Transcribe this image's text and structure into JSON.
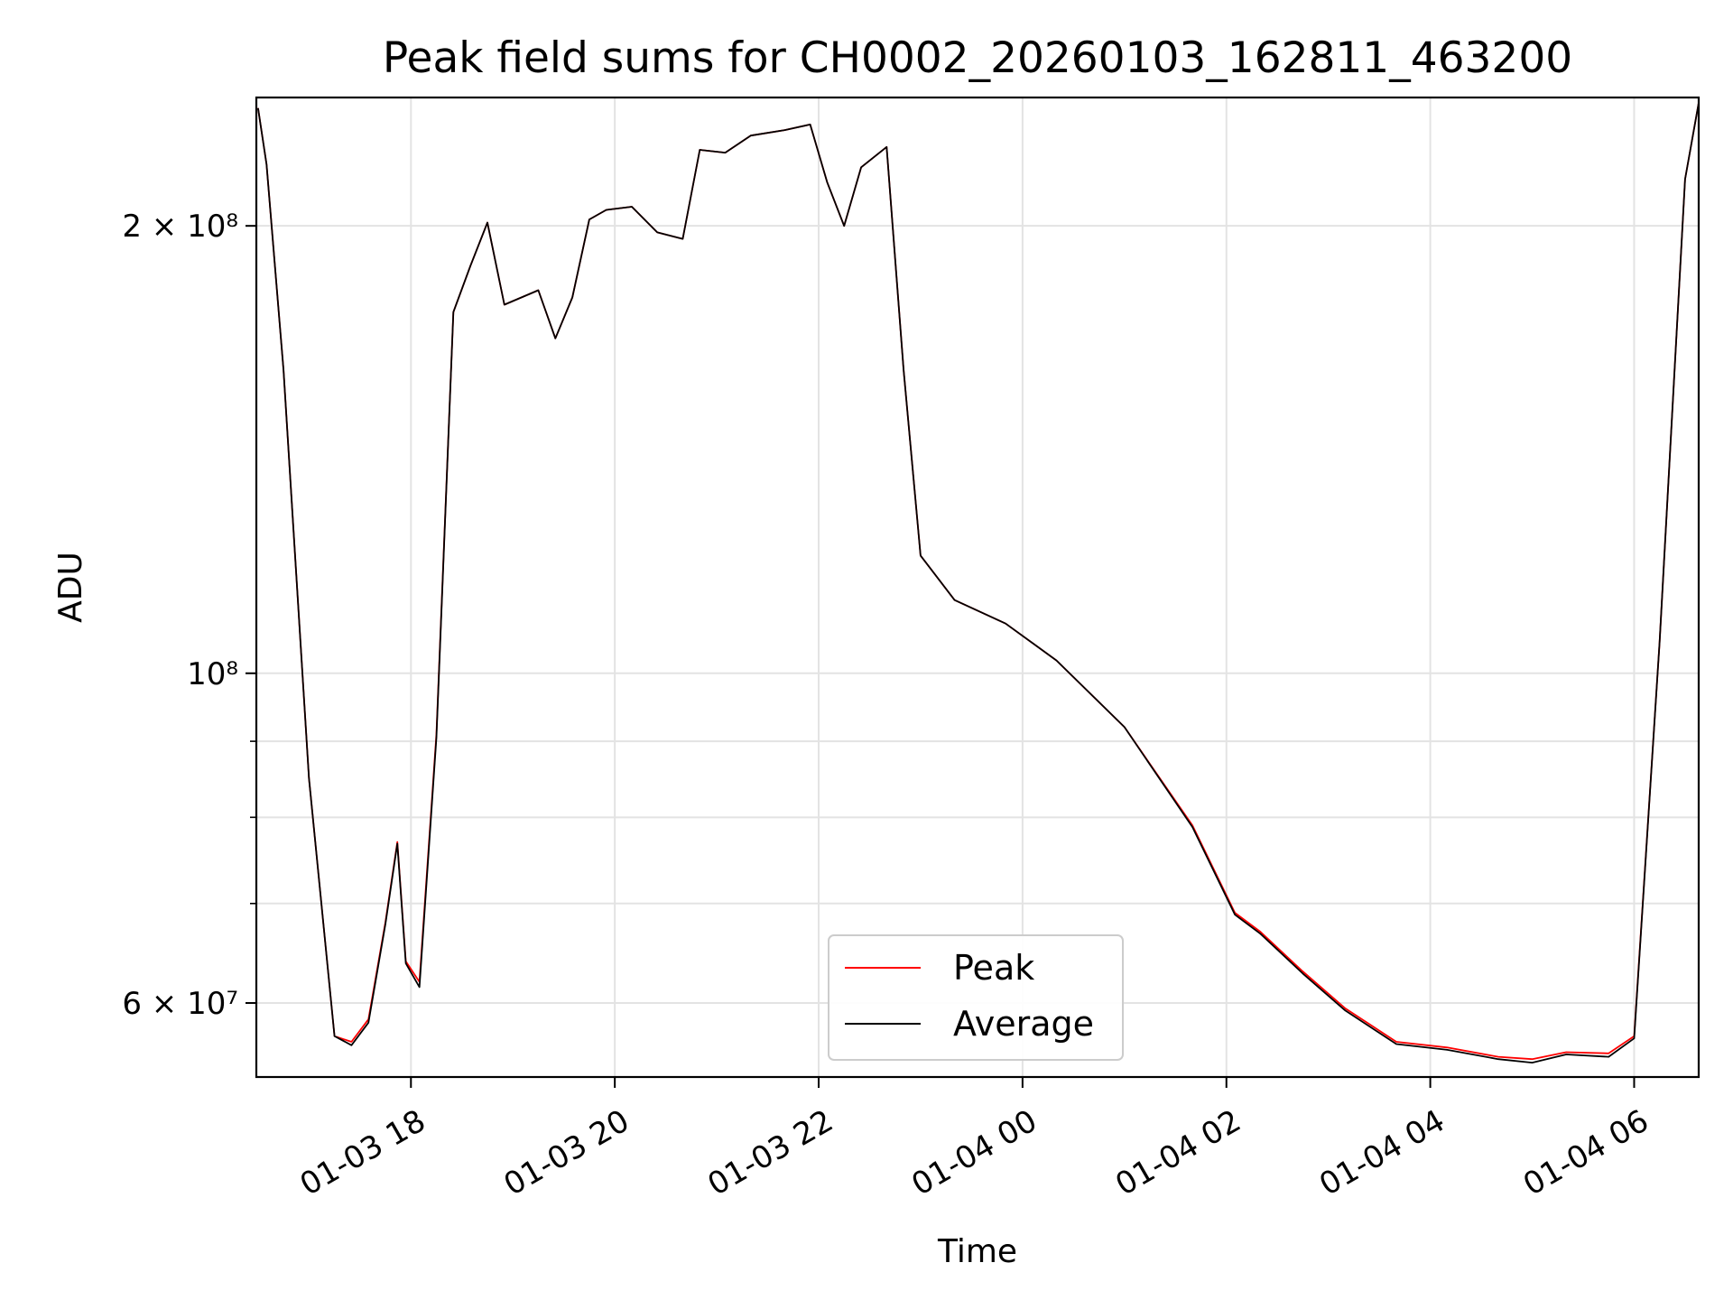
{
  "chart_data": {
    "type": "line",
    "title": "Peak field sums for CH0002_20260103_162811_463200",
    "xlabel": "Time",
    "ylabel": "ADU",
    "y_scale": "log",
    "ylim": [
      53500000,
      244000000
    ],
    "xlim": [
      "2026-01-03 16:29",
      "2026-01-04 06:38"
    ],
    "grid": true,
    "legend_position": "bottom-center",
    "x_ticks": [
      {
        "value": "2026-01-03 18:00",
        "label": "01-03 18"
      },
      {
        "value": "2026-01-03 20:00",
        "label": "01-03 20"
      },
      {
        "value": "2026-01-03 22:00",
        "label": "01-03 22"
      },
      {
        "value": "2026-01-04 00:00",
        "label": "01-04 00"
      },
      {
        "value": "2026-01-04 02:00",
        "label": "01-04 02"
      },
      {
        "value": "2026-01-04 04:00",
        "label": "01-04 04"
      },
      {
        "value": "2026-01-04 06:00",
        "label": "01-04 06"
      }
    ],
    "y_ticks": [
      {
        "value": 60000000,
        "label": "6 × 10⁷"
      },
      {
        "value": 100000000,
        "label": "10⁸"
      },
      {
        "value": 200000000,
        "label": "2 × 10⁸"
      }
    ],
    "y_minor_ticks": [
      70000000,
      80000000,
      90000000
    ],
    "x": [
      "2026-01-03 16:30",
      "2026-01-03 16:35",
      "2026-01-03 16:45",
      "2026-01-03 17:00",
      "2026-01-03 17:15",
      "2026-01-03 17:25",
      "2026-01-03 17:35",
      "2026-01-03 17:45",
      "2026-01-03 17:52",
      "2026-01-03 17:57",
      "2026-01-03 18:05",
      "2026-01-03 18:15",
      "2026-01-03 18:25",
      "2026-01-03 18:35",
      "2026-01-03 18:45",
      "2026-01-03 18:55",
      "2026-01-03 19:05",
      "2026-01-03 19:15",
      "2026-01-03 19:25",
      "2026-01-03 19:35",
      "2026-01-03 19:45",
      "2026-01-03 19:55",
      "2026-01-03 20:10",
      "2026-01-03 20:25",
      "2026-01-03 20:40",
      "2026-01-03 20:50",
      "2026-01-03 21:05",
      "2026-01-03 21:20",
      "2026-01-03 21:40",
      "2026-01-03 21:55",
      "2026-01-03 22:05",
      "2026-01-03 22:15",
      "2026-01-03 22:25",
      "2026-01-03 22:40",
      "2026-01-03 22:50",
      "2026-01-03 23:00",
      "2026-01-03 23:20",
      "2026-01-03 23:50",
      "2026-01-04 00:20",
      "2026-01-04 01:00",
      "2026-01-04 01:40",
      "2026-01-04 02:05",
      "2026-01-04 02:20",
      "2026-01-04 02:45",
      "2026-01-04 03:10",
      "2026-01-04 03:40",
      "2026-01-04 04:10",
      "2026-01-04 04:40",
      "2026-01-04 05:00",
      "2026-01-04 05:20",
      "2026-01-04 05:45",
      "2026-01-04 06:00",
      "2026-01-04 06:15",
      "2026-01-04 06:30",
      "2026-01-04 06:38"
    ],
    "series": [
      {
        "name": "Peak",
        "color": "#ff0000",
        "values": [
          240000000,
          220000000,
          160000000,
          85000000,
          57000000,
          56500000,
          58500000,
          68000000,
          77000000,
          64000000,
          62000000,
          91000000,
          175000000,
          188000000,
          201000000,
          177000000,
          179000000,
          181000000,
          168000000,
          179000000,
          202000000,
          205000000,
          206000000,
          198000000,
          196000000,
          225000000,
          224000000,
          230000000,
          232000000,
          234000000,
          214000000,
          200000000,
          219000000,
          226000000,
          160000000,
          120000000,
          112000000,
          108000000,
          102000000,
          92000000,
          79000000,
          69000000,
          67000000,
          63000000,
          59500000,
          56500000,
          56000000,
          55200000,
          55000000,
          55600000,
          55500000,
          57000000,
          105000000,
          215000000,
          242000000
        ]
      },
      {
        "name": "Average",
        "color": "#000000",
        "values": [
          240000000,
          220000000,
          160000000,
          85000000,
          57000000,
          56200000,
          58200000,
          67800000,
          76800000,
          63800000,
          61500000,
          90500000,
          175000000,
          188000000,
          201000000,
          177000000,
          179000000,
          181000000,
          168000000,
          179000000,
          202000000,
          205000000,
          206000000,
          198000000,
          196000000,
          225000000,
          224000000,
          230000000,
          232000000,
          234000000,
          214000000,
          200000000,
          219000000,
          226000000,
          160000000,
          120000000,
          112000000,
          108000000,
          102000000,
          92000000,
          78800000,
          68800000,
          66800000,
          62800000,
          59300000,
          56300000,
          55800000,
          55000000,
          54700000,
          55400000,
          55200000,
          56800000,
          105000000,
          215000000,
          242000000
        ]
      }
    ]
  }
}
